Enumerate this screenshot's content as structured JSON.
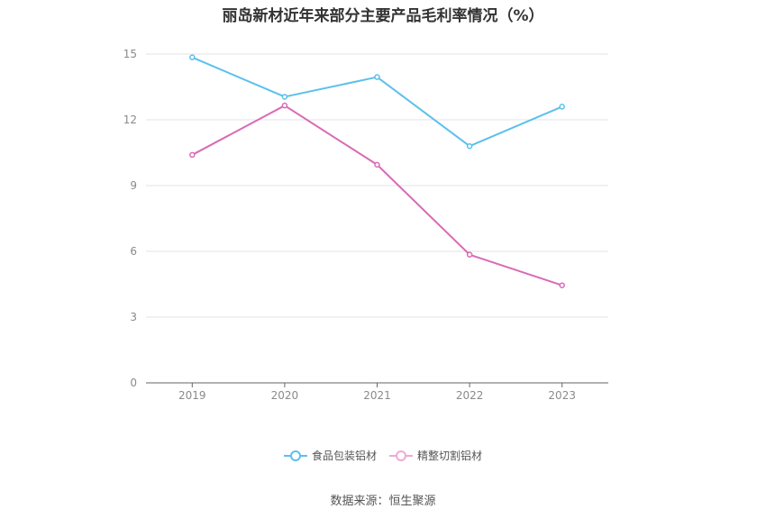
{
  "chart_data": {
    "type": "line",
    "title": "丽岛新材近年来部分主要产品毛利率情况（%）",
    "categories": [
      "2019",
      "2020",
      "2021",
      "2022",
      "2023"
    ],
    "series": [
      {
        "name": "食品包装铝材",
        "color": "#5bc0eb",
        "values": [
          14.85,
          13.05,
          13.95,
          10.8,
          12.6
        ]
      },
      {
        "name": "精整切割铝材",
        "color": "#d96bb5",
        "values": [
          10.4,
          12.65,
          9.95,
          5.85,
          4.45
        ]
      }
    ],
    "yticks": [
      0,
      3,
      6,
      9,
      12,
      15
    ],
    "ylim": [
      0,
      15
    ],
    "grid": true,
    "legend_position": "bottom"
  },
  "source": "数据来源：恒生聚源"
}
